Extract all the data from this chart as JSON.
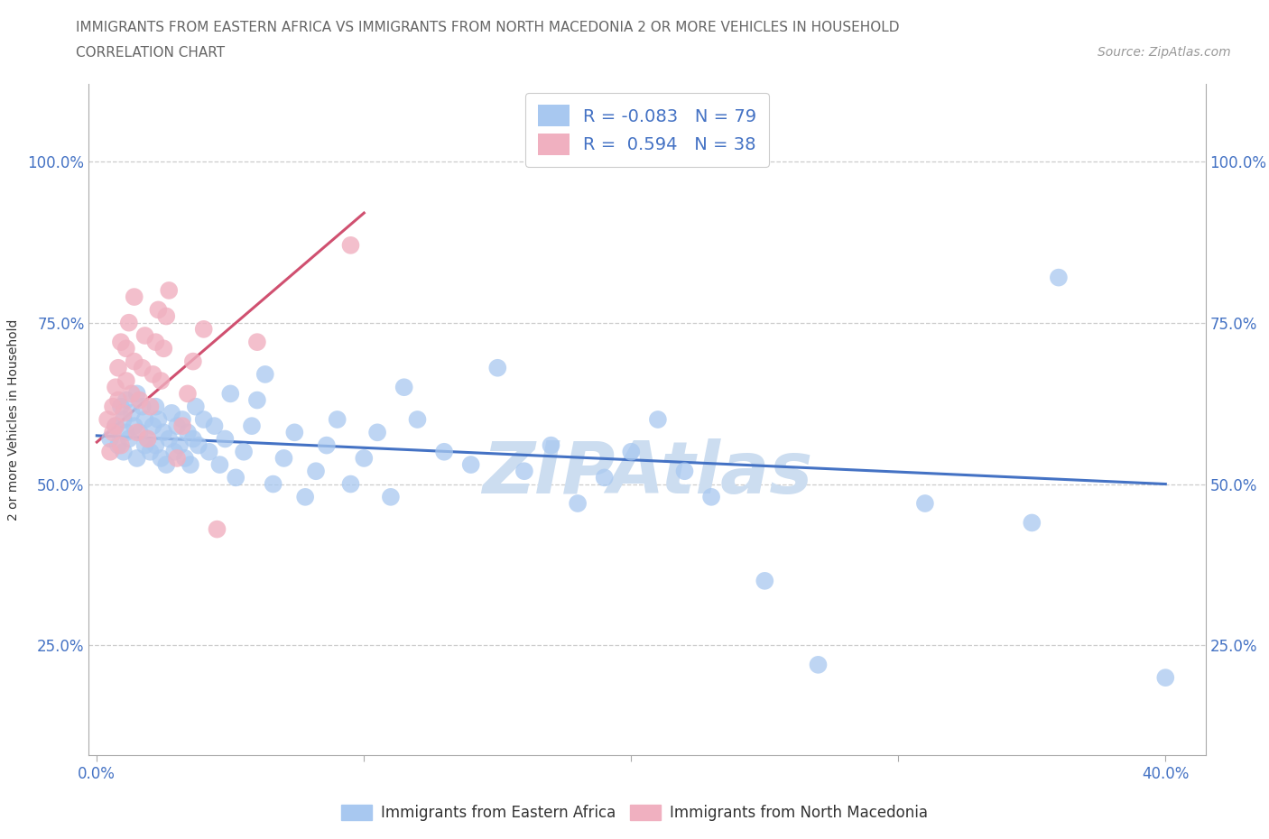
{
  "title_line1": "IMMIGRANTS FROM EASTERN AFRICA VS IMMIGRANTS FROM NORTH MACEDONIA 2 OR MORE VEHICLES IN HOUSEHOLD",
  "title_line2": "CORRELATION CHART",
  "source_text": "Source: ZipAtlas.com",
  "ylabel": "2 or more Vehicles in Household",
  "xlim": [
    -0.003,
    0.415
  ],
  "ylim": [
    0.08,
    1.12
  ],
  "xtick_values": [
    0.0,
    0.1,
    0.2,
    0.3,
    0.4
  ],
  "ytick_values": [
    0.25,
    0.5,
    0.75,
    1.0
  ],
  "blue_R": -0.083,
  "blue_N": 79,
  "pink_R": 0.594,
  "pink_N": 38,
  "blue_color": "#a8c8f0",
  "pink_color": "#f0b0c0",
  "blue_line_color": "#4472c4",
  "pink_line_color": "#d05070",
  "watermark_color": "#ccddf0",
  "legend_label_blue": "Immigrants from Eastern Africa",
  "legend_label_pink": "Immigrants from North Macedonia",
  "blue_trend_x0": 0.0,
  "blue_trend_y0": 0.575,
  "blue_trend_x1": 0.4,
  "blue_trend_y1": 0.5,
  "pink_trend_x0": 0.0,
  "pink_trend_y0": 0.565,
  "pink_trend_x1": 0.1,
  "pink_trend_y1": 0.92,
  "blue_x": [
    0.005,
    0.007,
    0.008,
    0.009,
    0.01,
    0.01,
    0.011,
    0.011,
    0.012,
    0.013,
    0.014,
    0.015,
    0.015,
    0.016,
    0.017,
    0.018,
    0.018,
    0.019,
    0.02,
    0.021,
    0.022,
    0.022,
    0.023,
    0.024,
    0.025,
    0.026,
    0.027,
    0.028,
    0.029,
    0.03,
    0.031,
    0.032,
    0.033,
    0.034,
    0.035,
    0.036,
    0.037,
    0.038,
    0.04,
    0.042,
    0.044,
    0.046,
    0.048,
    0.05,
    0.052,
    0.055,
    0.058,
    0.06,
    0.063,
    0.066,
    0.07,
    0.074,
    0.078,
    0.082,
    0.086,
    0.09,
    0.095,
    0.1,
    0.105,
    0.11,
    0.115,
    0.12,
    0.13,
    0.14,
    0.15,
    0.16,
    0.17,
    0.18,
    0.19,
    0.2,
    0.21,
    0.22,
    0.23,
    0.25,
    0.27,
    0.31,
    0.35,
    0.36,
    0.4
  ],
  "blue_y": [
    0.57,
    0.59,
    0.56,
    0.62,
    0.55,
    0.6,
    0.58,
    0.63,
    0.57,
    0.61,
    0.59,
    0.54,
    0.64,
    0.58,
    0.62,
    0.56,
    0.6,
    0.57,
    0.55,
    0.59,
    0.62,
    0.56,
    0.6,
    0.54,
    0.58,
    0.53,
    0.57,
    0.61,
    0.55,
    0.59,
    0.56,
    0.6,
    0.54,
    0.58,
    0.53,
    0.57,
    0.62,
    0.56,
    0.6,
    0.55,
    0.59,
    0.53,
    0.57,
    0.64,
    0.51,
    0.55,
    0.59,
    0.63,
    0.67,
    0.5,
    0.54,
    0.58,
    0.48,
    0.52,
    0.56,
    0.6,
    0.5,
    0.54,
    0.58,
    0.48,
    0.65,
    0.6,
    0.55,
    0.53,
    0.68,
    0.52,
    0.56,
    0.47,
    0.51,
    0.55,
    0.6,
    0.52,
    0.48,
    0.35,
    0.22,
    0.47,
    0.44,
    0.82,
    0.2
  ],
  "pink_x": [
    0.004,
    0.005,
    0.006,
    0.006,
    0.007,
    0.007,
    0.008,
    0.008,
    0.009,
    0.009,
    0.01,
    0.011,
    0.011,
    0.012,
    0.013,
    0.014,
    0.014,
    0.015,
    0.016,
    0.017,
    0.018,
    0.019,
    0.02,
    0.021,
    0.022,
    0.023,
    0.024,
    0.025,
    0.026,
    0.027,
    0.03,
    0.032,
    0.034,
    0.036,
    0.04,
    0.045,
    0.06,
    0.095
  ],
  "pink_y": [
    0.6,
    0.55,
    0.62,
    0.58,
    0.65,
    0.59,
    0.68,
    0.63,
    0.72,
    0.56,
    0.61,
    0.66,
    0.71,
    0.75,
    0.64,
    0.69,
    0.79,
    0.58,
    0.63,
    0.68,
    0.73,
    0.57,
    0.62,
    0.67,
    0.72,
    0.77,
    0.66,
    0.71,
    0.76,
    0.8,
    0.54,
    0.59,
    0.64,
    0.69,
    0.74,
    0.43,
    0.72,
    0.87
  ]
}
